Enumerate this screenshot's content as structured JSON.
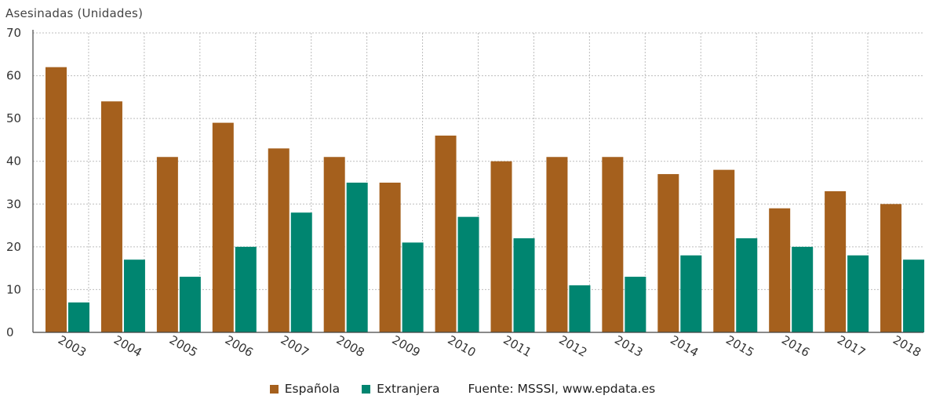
{
  "chart_data": {
    "type": "bar",
    "ylabel": "Asesinadas (Unidades)",
    "ylim": [
      0,
      70
    ],
    "yticks": [
      0,
      10,
      20,
      30,
      40,
      50,
      60,
      70
    ],
    "grid": true,
    "legend_position": "bottom",
    "categories": [
      "2003",
      "2004",
      "2005",
      "2006",
      "2007",
      "2008",
      "2009",
      "2010",
      "2011",
      "2012",
      "2013",
      "2014",
      "2015",
      "2016",
      "2017",
      "2018"
    ],
    "series": [
      {
        "name": "Española",
        "color": "#A5601D",
        "values": [
          62,
          54,
          41,
          49,
          43,
          41,
          35,
          46,
          40,
          41,
          41,
          37,
          38,
          29,
          33,
          30
        ]
      },
      {
        "name": "Extranjera",
        "color": "#008570",
        "values": [
          7,
          17,
          13,
          20,
          28,
          35,
          21,
          27,
          22,
          11,
          13,
          18,
          22,
          20,
          18,
          17
        ]
      }
    ]
  },
  "source": "Fuente: MSSSI, www.epdata.es"
}
